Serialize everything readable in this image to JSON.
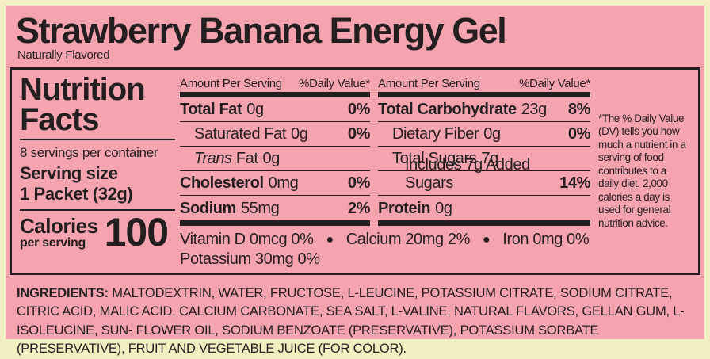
{
  "colors": {
    "background_cream": "#F4EEC3",
    "label_pink": "#F4A3AF",
    "text_black": "#231F20"
  },
  "header": {
    "product_name": "Strawberry Banana Energy Gel",
    "subtitle": "Naturally Flavored"
  },
  "nutrition_facts": {
    "panel_title": "Nutrition Facts",
    "servings_per_container": "8 servings per container",
    "serving_size_label": "Serving size",
    "serving_size_value": "1 Packet (32g)",
    "calories_label": "Calories",
    "calories_sublabel": "per serving",
    "calories_value": "100",
    "column1": {
      "amount_header": "Amount Per Serving",
      "dv_header": "%Daily Value*",
      "rows": [
        {
          "label": "Total Fat",
          "amount": "0g",
          "dv": "0%"
        },
        {
          "label": "Saturated Fat",
          "amount": "0g",
          "dv": "0%"
        },
        {
          "label_italic": "Trans",
          "label": "Fat",
          "amount": "0g",
          "dv": ""
        },
        {
          "label": "Cholesterol",
          "amount": "0mg",
          "dv": "0%"
        },
        {
          "label": "Sodium",
          "amount": "55mg",
          "dv": "2%"
        }
      ]
    },
    "column2": {
      "amount_header": "Amount Per Serving",
      "dv_header": "%Daily Value*",
      "rows": [
        {
          "label": "Total Carbohydrate",
          "amount": "23g",
          "dv": "8%"
        },
        {
          "label": "Dietary Fiber",
          "amount": "0g",
          "dv": "0%"
        },
        {
          "label": "Total Sugars",
          "amount": "7g",
          "dv": ""
        },
        {
          "label": "Includes 7g Added Sugars",
          "amount": "",
          "dv": "14%"
        },
        {
          "label": "Protein",
          "amount": "0g",
          "dv": ""
        }
      ]
    },
    "micronutrients": {
      "vitamin_d": "Vitamin D  0mcg  0%",
      "calcium": "Calcium  20mg 2%",
      "iron": "Iron  0mg  0%",
      "potassium": "Potassium  30mg  0%",
      "bullet": "●"
    },
    "footnote": "*The % Daily Value (DV) tells you how much a nutrient in a serving of food contributes to a daily diet. 2,000 calories a day is used for general nutrition advice."
  },
  "ingredients": {
    "label": "INGREDIENTS:",
    "text": "MALTODEXTRIN, WATER, FRUCTOSE, L-LEUCINE, POTASSIUM CITRATE, SODIUM CITRATE, CITRIC ACID, MALIC ACID, CALCIUM CARBONATE, SEA SALT, L-VALINE, NATURAL FLAVORS, GELLAN GUM, L-ISOLEUCINE, SUN- FLOWER OIL, SODIUM BENZOATE (PRESERVATIVE), POTASSIUM SORBATE (PRESERVATIVE), FRUIT AND VEGETABLE JUICE (FOR COLOR)."
  }
}
